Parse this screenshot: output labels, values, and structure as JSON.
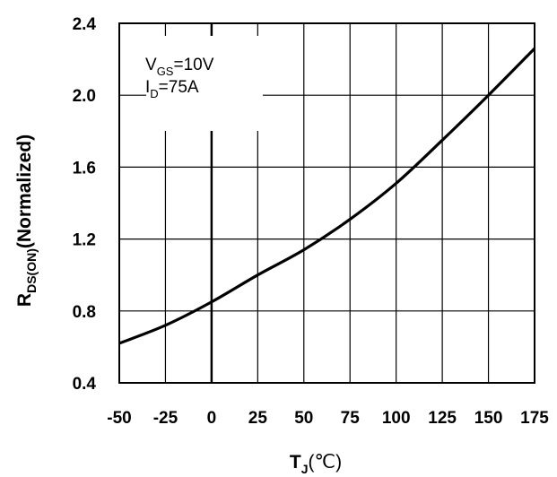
{
  "chart_data": {
    "type": "line",
    "x_ticks": [
      "-50",
      "-25",
      "0",
      "25",
      "50",
      "75",
      "100",
      "125",
      "150",
      "175"
    ],
    "y_ticks": [
      "0.4",
      "0.8",
      "1.2",
      "1.6",
      "2.0",
      "2.4"
    ],
    "xlim": [
      -50,
      175
    ],
    "ylim": [
      0.4,
      2.4
    ],
    "grid": true,
    "x_label": {
      "main": "T",
      "sub": "J",
      "unit": "(℃)"
    },
    "y_label": {
      "main": "R",
      "sub": "DS(ON)",
      "rest": "(Normalized)"
    },
    "annotations": [
      {
        "main": "V",
        "sub": "GS",
        "rest": "=10V"
      },
      {
        "main": "I",
        "sub": "D",
        "rest": "=75A"
      }
    ],
    "series": [
      {
        "x": [
          -50,
          -25,
          0,
          25,
          50,
          75,
          100,
          125,
          150,
          175
        ],
        "y": [
          0.62,
          0.72,
          0.85,
          1.0,
          1.14,
          1.31,
          1.51,
          1.75,
          2.0,
          2.26
        ]
      }
    ]
  }
}
